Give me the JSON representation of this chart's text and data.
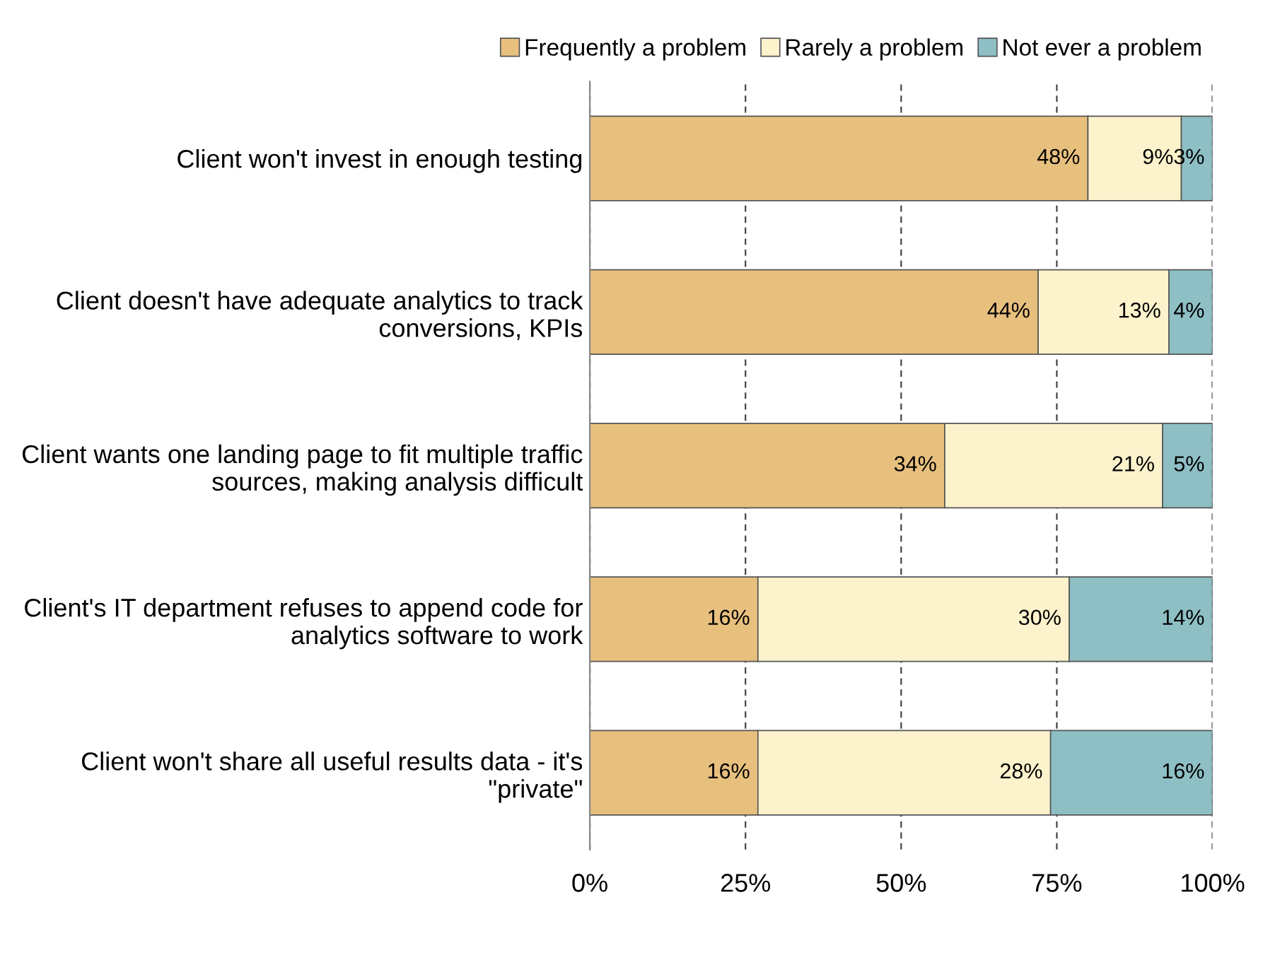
{
  "chart_data": {
    "type": "bar",
    "orientation": "horizontal",
    "stacked": true,
    "categories": [
      "Client won't invest in enough testing",
      "Client doesn't have adequate analytics to track conversions, KPIs",
      "Client wants one landing page to fit multiple traffic sources, making analysis difficult",
      "Client's IT department refuses to append code for analytics software to work",
      "Client won't share all useful results data - it's \"private\""
    ],
    "series": [
      {
        "name": "Frequently a problem",
        "color": "#e8c07e",
        "values": [
          80,
          72,
          57,
          27,
          27
        ]
      },
      {
        "name": "Rarely a problem",
        "color": "#fcf2cc",
        "values": [
          15,
          21,
          35,
          50,
          47
        ]
      },
      {
        "name": "Not ever a problem",
        "color": "#8ebfc5",
        "values": [
          5,
          7,
          8,
          23,
          26
        ]
      }
    ],
    "annotations": [
      {
        "text": "48%",
        "x": 80,
        "y": "Client won't invest in enough testing"
      },
      {
        "text": "9%",
        "x": 95,
        "y": "Client won't invest in enough testing"
      },
      {
        "text": "3%",
        "x": 100,
        "y": "Client won't invest in enough testing"
      },
      {
        "text": "44%",
        "x": 72,
        "y": "Client doesn't have adequate analytics to track conversions, KPIs"
      },
      {
        "text": "13%",
        "x": 93,
        "y": "Client doesn't have adequate analytics to track conversions, KPIs"
      },
      {
        "text": "4%",
        "x": 100,
        "y": "Client doesn't have adequate analytics to track conversions, KPIs"
      },
      {
        "text": "34%",
        "x": 57,
        "y": "Client wants one landing page to fit multiple traffic sources, making analysis difficult"
      },
      {
        "text": "21%",
        "x": 92,
        "y": "Client wants one landing page to fit multiple traffic sources, making analysis difficult"
      },
      {
        "text": "5%",
        "x": 100,
        "y": "Client wants one landing page to fit multiple traffic sources, making analysis difficult"
      },
      {
        "text": "16%",
        "x": 27,
        "y": "Client's IT department refuses to append code for analytics software to work"
      },
      {
        "text": "30%",
        "x": 77,
        "y": "Client's IT department refuses to append code for analytics software to work"
      },
      {
        "text": "14%",
        "x": 100,
        "y": "Client's IT department refuses to append code for analytics software to work"
      },
      {
        "text": "16%",
        "x": 27,
        "y": "Client won't share all useful results data - it's \"private\""
      },
      {
        "text": "28%",
        "x": 74,
        "y": "Client won't share all useful results data - it's \"private\""
      },
      {
        "text": "16%",
        "x": 100,
        "y": "Client won't share all useful results data - it's \"private\""
      }
    ],
    "xlim": [
      0,
      100
    ],
    "xticks": [
      {
        "value": 0,
        "label": "0%"
      },
      {
        "value": 25,
        "label": "25%"
      },
      {
        "value": 50,
        "label": "50%"
      },
      {
        "value": 75,
        "label": "75%"
      },
      {
        "value": 100,
        "label": "100%"
      }
    ],
    "grid": "x",
    "legend": "top"
  }
}
